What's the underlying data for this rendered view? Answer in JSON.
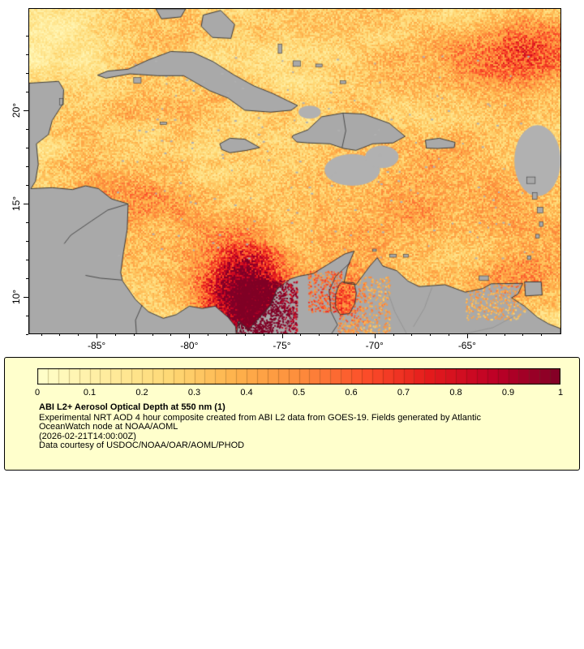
{
  "figure": {
    "x_axis": {
      "ticks": [
        {
          "label": "-85°",
          "lon": -85
        },
        {
          "label": "-80°",
          "lon": -80
        },
        {
          "label": "-75°",
          "lon": -75
        },
        {
          "label": "-70°",
          "lon": -70
        },
        {
          "label": "-65°",
          "lon": -65
        }
      ],
      "minor_from": -88,
      "minor_to": -60
    },
    "y_axis": {
      "ticks": [
        {
          "label": "20°",
          "lat": 20
        },
        {
          "label": "15°",
          "lat": 15
        },
        {
          "label": "10°",
          "lat": 10
        }
      ],
      "minor_from": 8,
      "minor_to": 25
    }
  },
  "colorbar": {
    "cells": 50,
    "tick_labels": [
      "0",
      "0.1",
      "0.2",
      "0.3",
      "0.4",
      "0.5",
      "0.6",
      "0.7",
      "0.8",
      "0.9",
      "1"
    ]
  },
  "legend": {
    "background": "#ffffcc",
    "title": "ABI L2+ Aerosol Optical Depth at 550 nm (1)",
    "lines": [
      "Experimental NRT AOD 4 hour composite created from ABI L2 data from GOES-19. Fields generated by Atlantic",
      "OceanWatch node at NOAA/AOML",
      "(2026-02-21T14:00:00Z)",
      "Data courtesy of USDOC/NOAA/OAR/AOML/PHOD"
    ]
  },
  "chart_data": {
    "type": "heatmap",
    "title": "ABI L2+ Aerosol Optical Depth at 550 nm (1)",
    "variable": "Aerosol Optical Depth at 550 nm",
    "timestamp": "2026-02-21T14:00:00Z",
    "lon_range": [
      -88.6,
      -60.0
    ],
    "lat_range": [
      7.8,
      25.4
    ],
    "x_ticks_deg": [
      -85,
      -80,
      -75,
      -70,
      -65
    ],
    "y_ticks_deg": [
      10,
      15,
      20
    ],
    "value_range": [
      0,
      1
    ],
    "colorbar_ticks": [
      0,
      0.1,
      0.2,
      0.3,
      0.4,
      0.5,
      0.6,
      0.7,
      0.8,
      0.9,
      1
    ],
    "colormap_stops": [
      "#ffffcc",
      "#ffeda0",
      "#fed976",
      "#feb24c",
      "#fd8d3c",
      "#fc4e2a",
      "#e31a1c",
      "#bd0026",
      "#800026"
    ],
    "land_color": "#a9a9a9"
  }
}
